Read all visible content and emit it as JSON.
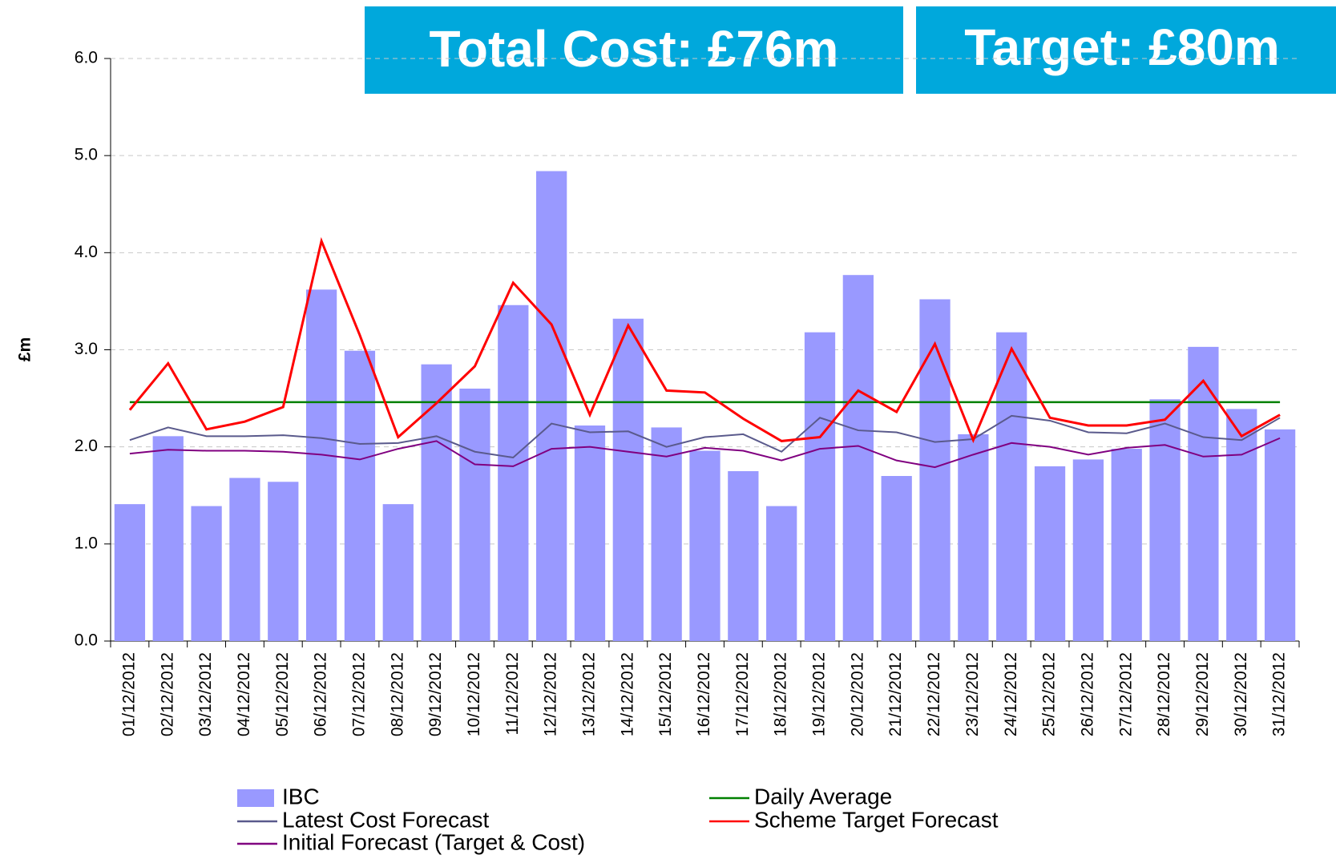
{
  "chart_data": {
    "type": "bar",
    "annotations": [
      "Total Cost: £76m",
      "Target: £80m"
    ],
    "ylabel": "£m",
    "categories": [
      "01/12/2012",
      "02/12/2012",
      "03/12/2012",
      "04/12/2012",
      "05/12/2012",
      "06/12/2012",
      "07/12/2012",
      "08/12/2012",
      "09/12/2012",
      "10/12/2012",
      "11/12/2012",
      "12/12/2012",
      "13/12/2012",
      "14/12/2012",
      "15/12/2012",
      "16/12/2012",
      "17/12/2012",
      "18/12/2012",
      "19/12/2012",
      "20/12/2012",
      "21/12/2012",
      "22/12/2012",
      "23/12/2012",
      "24/12/2012",
      "25/12/2012",
      "26/12/2012",
      "27/12/2012",
      "28/12/2012",
      "29/12/2012",
      "30/12/2012",
      "31/12/2012"
    ],
    "series": [
      {
        "name": "IBC",
        "type": "bar",
        "color": "#9999ff",
        "values": [
          1.41,
          2.11,
          1.39,
          1.68,
          1.64,
          3.62,
          2.99,
          1.41,
          2.85,
          2.6,
          3.46,
          4.84,
          2.22,
          3.32,
          2.2,
          1.96,
          1.75,
          1.39,
          3.18,
          3.77,
          1.7,
          3.52,
          2.13,
          3.18,
          1.8,
          1.87,
          1.98,
          2.49,
          3.03,
          2.39,
          2.18
        ]
      },
      {
        "name": "Daily Average",
        "type": "hline",
        "color": "#008000",
        "value": 2.46
      },
      {
        "name": "Latest Cost Forecast",
        "type": "line",
        "color": "#5a5a8c",
        "values": [
          2.07,
          2.2,
          2.11,
          2.11,
          2.12,
          2.09,
          2.03,
          2.04,
          2.11,
          1.95,
          1.89,
          2.24,
          2.15,
          2.16,
          2.0,
          2.1,
          2.13,
          1.95,
          2.3,
          2.17,
          2.15,
          2.05,
          2.08,
          2.32,
          2.27,
          2.15,
          2.14,
          2.24,
          2.1,
          2.07,
          2.3
        ]
      },
      {
        "name": "Scheme Target Forecast",
        "type": "line",
        "color": "#ff0000",
        "values": [
          2.38,
          2.86,
          2.18,
          2.26,
          2.41,
          4.12,
          3.15,
          2.1,
          2.45,
          2.83,
          3.69,
          3.26,
          2.33,
          3.25,
          2.58,
          2.56,
          2.29,
          2.06,
          2.1,
          2.58,
          2.36,
          3.06,
          2.07,
          3.01,
          2.3,
          2.22,
          2.22,
          2.28,
          2.68,
          2.11,
          2.33
        ]
      },
      {
        "name": "Initial Forecast (Target & Cost)",
        "type": "line",
        "color": "#800080",
        "values": [
          1.93,
          1.97,
          1.96,
          1.96,
          1.95,
          1.92,
          1.87,
          1.98,
          2.06,
          1.82,
          1.8,
          1.98,
          2.0,
          1.95,
          1.9,
          1.99,
          1.96,
          1.86,
          1.98,
          2.01,
          1.86,
          1.79,
          1.92,
          2.04,
          2.0,
          1.92,
          1.99,
          2.02,
          1.9,
          1.92,
          2.09
        ]
      }
    ],
    "ylim": [
      0,
      6
    ],
    "yticks": [
      {
        "value": 0,
        "label": "0.0"
      },
      {
        "value": 1,
        "label": "1.0"
      },
      {
        "value": 2,
        "label": "2.0"
      },
      {
        "value": 3,
        "label": "3.0"
      },
      {
        "value": 4,
        "label": "4.0"
      },
      {
        "value": 5,
        "label": "5.0"
      },
      {
        "value": 6,
        "label": "6.0"
      }
    ],
    "grid": true
  }
}
